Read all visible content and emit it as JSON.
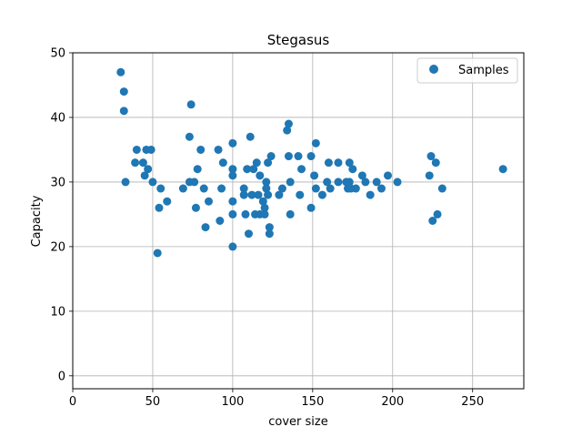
{
  "chart_data": {
    "type": "scatter",
    "title": "Stegasus",
    "xlabel": "cover size",
    "ylabel": "Capacity",
    "xlim": [
      0,
      282
    ],
    "ylim": [
      -2,
      50
    ],
    "xticks": [
      0,
      50,
      100,
      150,
      200,
      250
    ],
    "yticks": [
      0,
      10,
      20,
      30,
      40,
      50
    ],
    "grid": true,
    "legend": {
      "position": "upper-right",
      "entries": [
        "Samples"
      ]
    },
    "colors": {
      "marker": "#1f77b4"
    },
    "series": [
      {
        "name": "Samples",
        "points": [
          [
            30,
            47
          ],
          [
            32,
            44
          ],
          [
            32,
            41
          ],
          [
            33,
            30
          ],
          [
            39,
            33
          ],
          [
            40,
            35
          ],
          [
            44,
            33
          ],
          [
            45,
            31
          ],
          [
            46,
            35
          ],
          [
            47,
            32
          ],
          [
            49,
            35
          ],
          [
            50,
            30
          ],
          [
            53,
            19
          ],
          [
            54,
            26
          ],
          [
            55,
            29
          ],
          [
            59,
            27
          ],
          [
            69,
            29
          ],
          [
            73,
            37
          ],
          [
            73,
            30
          ],
          [
            74,
            42
          ],
          [
            76,
            30
          ],
          [
            77,
            26
          ],
          [
            78,
            32
          ],
          [
            80,
            35
          ],
          [
            82,
            29
          ],
          [
            83,
            23
          ],
          [
            85,
            27
          ],
          [
            91,
            35
          ],
          [
            92,
            24
          ],
          [
            93,
            29
          ],
          [
            94,
            33
          ],
          [
            100,
            36
          ],
          [
            100,
            32
          ],
          [
            100,
            31
          ],
          [
            100,
            27
          ],
          [
            100,
            25
          ],
          [
            100,
            20
          ],
          [
            107,
            29
          ],
          [
            107,
            28
          ],
          [
            108,
            25
          ],
          [
            109,
            32
          ],
          [
            110,
            22
          ],
          [
            111,
            37
          ],
          [
            112,
            28
          ],
          [
            113,
            32
          ],
          [
            114,
            25
          ],
          [
            115,
            33
          ],
          [
            116,
            28
          ],
          [
            117,
            31
          ],
          [
            117,
            25
          ],
          [
            119,
            27
          ],
          [
            120,
            25
          ],
          [
            120,
            26
          ],
          [
            121,
            30
          ],
          [
            121,
            29
          ],
          [
            122,
            33
          ],
          [
            122,
            28
          ],
          [
            123,
            23
          ],
          [
            123,
            22
          ],
          [
            124,
            34
          ],
          [
            129,
            28
          ],
          [
            131,
            29
          ],
          [
            134,
            38
          ],
          [
            135,
            34
          ],
          [
            135,
            39
          ],
          [
            136,
            25
          ],
          [
            136,
            30
          ],
          [
            141,
            34
          ],
          [
            142,
            28
          ],
          [
            143,
            32
          ],
          [
            149,
            34
          ],
          [
            149,
            26
          ],
          [
            151,
            31
          ],
          [
            152,
            29
          ],
          [
            152,
            36
          ],
          [
            156,
            28
          ],
          [
            159,
            30
          ],
          [
            160,
            33
          ],
          [
            161,
            29
          ],
          [
            166,
            33
          ],
          [
            166,
            30
          ],
          [
            171,
            30
          ],
          [
            172,
            29
          ],
          [
            173,
            33
          ],
          [
            173,
            30
          ],
          [
            174,
            29
          ],
          [
            175,
            32
          ],
          [
            177,
            29
          ],
          [
            181,
            31
          ],
          [
            183,
            30
          ],
          [
            186,
            28
          ],
          [
            190,
            30
          ],
          [
            193,
            29
          ],
          [
            197,
            31
          ],
          [
            203,
            30
          ],
          [
            223,
            31
          ],
          [
            224,
            34
          ],
          [
            225,
            24
          ],
          [
            227,
            33
          ],
          [
            228,
            25
          ],
          [
            231,
            29
          ],
          [
            269,
            32
          ]
        ]
      }
    ]
  }
}
